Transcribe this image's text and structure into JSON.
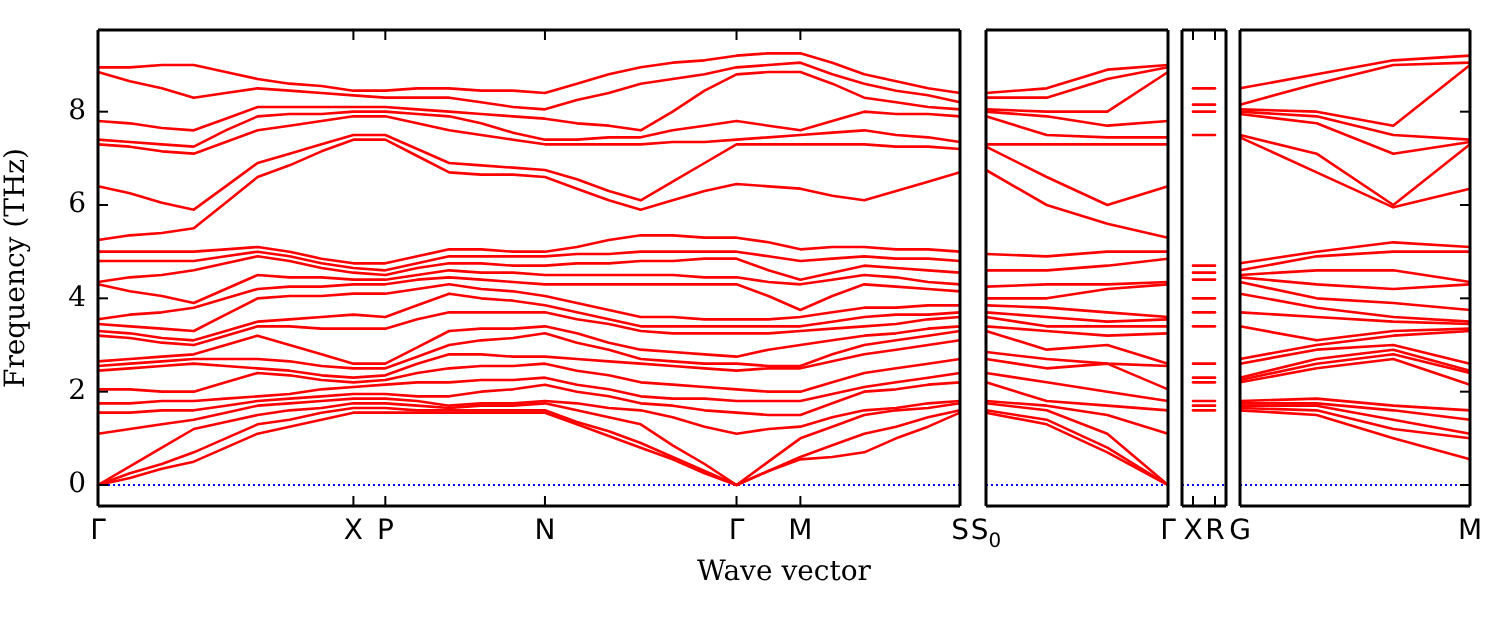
{
  "chart_data": [
    {
      "type": "line",
      "xlabel": "Wave vector",
      "ylabel": "Frequency (THz)",
      "ylim": [
        -0.45,
        9.75
      ],
      "yticks": [
        0,
        2,
        4,
        6,
        8
      ],
      "categories": [
        "Γ",
        null,
        null,
        null,
        null,
        null,
        null,
        null,
        "X",
        "P",
        null,
        null,
        null,
        null,
        "N",
        null,
        null,
        null,
        null,
        null,
        "Γ",
        null,
        "M",
        null,
        null,
        null,
        null,
        "S"
      ],
      "grid": false,
      "legend": false,
      "marker": "none",
      "line_style": "solid",
      "ref_lines": [
        {
          "axis": "y",
          "value": 0,
          "color": "#0000ff",
          "line_style": "dotted"
        }
      ],
      "series": [
        {
          "color": "#ff0000",
          "values": [
            0,
            0.15,
            0.35,
            0.5,
            0.8,
            1.1,
            1.25,
            1.4,
            1.55,
            1.55,
            1.55,
            1.55,
            1.55,
            1.55,
            1.55,
            1.3,
            1.05,
            0.8,
            0.55,
            0.25,
            0,
            0.3,
            0.55,
            0.6,
            0.7,
            1.0,
            1.25,
            1.55
          ]
        },
        {
          "color": "#ff0000",
          "values": [
            0,
            0.25,
            0.45,
            0.7,
            1.0,
            1.3,
            1.4,
            1.55,
            1.65,
            1.65,
            1.6,
            1.6,
            1.6,
            1.6,
            1.6,
            1.35,
            1.15,
            0.9,
            0.6,
            0.3,
            0,
            0.3,
            0.6,
            0.85,
            1.1,
            1.25,
            1.45,
            1.6
          ]
        },
        {
          "color": "#ff0000",
          "values": [
            0,
            0.4,
            0.8,
            1.2,
            1.35,
            1.5,
            1.6,
            1.65,
            1.75,
            1.75,
            1.7,
            1.65,
            1.7,
            1.7,
            1.75,
            1.6,
            1.45,
            1.3,
            0.85,
            0.45,
            0,
            0.5,
            1.0,
            1.25,
            1.5,
            1.6,
            1.65,
            1.75
          ]
        },
        {
          "color": "#ff0000",
          "values": [
            1.1,
            1.2,
            1.3,
            1.4,
            1.55,
            1.7,
            1.75,
            1.8,
            1.85,
            1.85,
            1.8,
            1.7,
            1.75,
            1.75,
            1.8,
            1.75,
            1.65,
            1.6,
            1.45,
            1.25,
            1.1,
            1.2,
            1.25,
            1.45,
            1.6,
            1.65,
            1.75,
            1.8
          ]
        },
        {
          "color": "#ff0000",
          "values": [
            1.55,
            1.55,
            1.6,
            1.6,
            1.7,
            1.8,
            1.85,
            1.9,
            1.95,
            1.95,
            1.9,
            1.9,
            2.0,
            2.05,
            2.15,
            2.0,
            1.9,
            1.75,
            1.7,
            1.6,
            1.55,
            1.5,
            1.5,
            1.75,
            2.0,
            2.05,
            2.15,
            2.2
          ]
        },
        {
          "color": "#ff0000",
          "values": [
            1.75,
            1.75,
            1.8,
            1.8,
            1.85,
            1.9,
            1.95,
            2.05,
            2.1,
            2.15,
            2.2,
            2.2,
            2.25,
            2.25,
            2.3,
            2.15,
            2.05,
            1.9,
            1.85,
            1.85,
            1.8,
            1.8,
            1.8,
            1.95,
            2.1,
            2.2,
            2.3,
            2.4
          ]
        },
        {
          "color": "#ff0000",
          "values": [
            2.05,
            2.05,
            2.0,
            2.0,
            2.2,
            2.4,
            2.35,
            2.25,
            2.2,
            2.25,
            2.4,
            2.5,
            2.55,
            2.55,
            2.6,
            2.45,
            2.35,
            2.2,
            2.15,
            2.1,
            2.05,
            2.0,
            2.0,
            2.2,
            2.4,
            2.5,
            2.6,
            2.7
          ]
        },
        {
          "color": "#ff0000",
          "values": [
            2.45,
            2.5,
            2.55,
            2.6,
            2.55,
            2.5,
            2.45,
            2.35,
            2.3,
            2.35,
            2.6,
            2.8,
            2.8,
            2.75,
            2.75,
            2.7,
            2.65,
            2.6,
            2.55,
            2.5,
            2.45,
            2.5,
            2.5,
            2.65,
            2.8,
            2.9,
            3.0,
            3.1
          ]
        },
        {
          "color": "#ff0000",
          "values": [
            2.55,
            2.6,
            2.65,
            2.7,
            2.7,
            2.7,
            2.65,
            2.55,
            2.5,
            2.5,
            2.75,
            3.0,
            3.1,
            3.15,
            3.25,
            3.05,
            2.9,
            2.7,
            2.65,
            2.6,
            2.6,
            2.55,
            2.55,
            2.8,
            3.0,
            3.1,
            3.2,
            3.3
          ]
        },
        {
          "color": "#ff0000",
          "values": [
            2.65,
            2.7,
            2.75,
            2.8,
            3.0,
            3.2,
            3.0,
            2.8,
            2.6,
            2.6,
            2.95,
            3.3,
            3.35,
            3.35,
            3.4,
            3.25,
            3.05,
            2.9,
            2.85,
            2.8,
            2.75,
            2.9,
            3.0,
            3.1,
            3.2,
            3.25,
            3.35,
            3.4
          ]
        },
        {
          "color": "#ff0000",
          "values": [
            3.2,
            3.15,
            3.05,
            3.0,
            3.2,
            3.4,
            3.4,
            3.35,
            3.35,
            3.35,
            3.55,
            3.7,
            3.7,
            3.7,
            3.7,
            3.55,
            3.45,
            3.3,
            3.25,
            3.25,
            3.25,
            3.25,
            3.3,
            3.35,
            3.4,
            3.45,
            3.55,
            3.6
          ]
        },
        {
          "color": "#ff0000",
          "values": [
            3.3,
            3.25,
            3.15,
            3.1,
            3.3,
            3.5,
            3.55,
            3.6,
            3.65,
            3.6,
            3.85,
            4.1,
            4.0,
            3.95,
            3.85,
            3.7,
            3.55,
            3.4,
            3.4,
            3.4,
            3.4,
            3.4,
            3.4,
            3.5,
            3.6,
            3.65,
            3.65,
            3.7
          ]
        },
        {
          "color": "#ff0000",
          "values": [
            3.45,
            3.4,
            3.35,
            3.3,
            3.65,
            4.0,
            4.05,
            4.05,
            4.1,
            4.1,
            4.2,
            4.3,
            4.2,
            4.15,
            4.05,
            3.9,
            3.75,
            3.6,
            3.6,
            3.55,
            3.55,
            3.55,
            3.6,
            3.7,
            3.8,
            3.8,
            3.85,
            3.85
          ]
        },
        {
          "color": "#ff0000",
          "values": [
            3.55,
            3.65,
            3.7,
            3.8,
            4.0,
            4.2,
            4.25,
            4.25,
            4.3,
            4.3,
            4.4,
            4.45,
            4.4,
            4.35,
            4.3,
            4.3,
            4.3,
            4.3,
            4.3,
            4.3,
            4.3,
            4.05,
            3.75,
            4.05,
            4.3,
            4.25,
            4.2,
            4.15
          ]
        },
        {
          "color": "#ff0000",
          "values": [
            4.3,
            4.15,
            4.05,
            3.9,
            4.2,
            4.5,
            4.45,
            4.45,
            4.4,
            4.4,
            4.5,
            4.6,
            4.55,
            4.55,
            4.5,
            4.5,
            4.5,
            4.5,
            4.5,
            4.45,
            4.45,
            4.35,
            4.3,
            4.4,
            4.5,
            4.45,
            4.35,
            4.3
          ]
        },
        {
          "color": "#ff0000",
          "values": [
            4.35,
            4.45,
            4.5,
            4.6,
            4.75,
            4.9,
            4.8,
            4.65,
            4.55,
            4.5,
            4.65,
            4.75,
            4.75,
            4.7,
            4.7,
            4.75,
            4.75,
            4.8,
            4.8,
            4.85,
            4.85,
            4.6,
            4.4,
            4.55,
            4.7,
            4.65,
            4.6,
            4.55
          ]
        },
        {
          "color": "#ff0000",
          "values": [
            4.8,
            4.8,
            4.8,
            4.8,
            4.9,
            5.0,
            4.9,
            4.75,
            4.65,
            4.6,
            4.75,
            4.9,
            4.9,
            4.9,
            4.9,
            4.95,
            4.95,
            5.0,
            5.0,
            5.0,
            5.0,
            4.9,
            4.8,
            4.85,
            4.9,
            4.85,
            4.85,
            4.8
          ]
        },
        {
          "color": "#ff0000",
          "values": [
            5.0,
            5.0,
            5.0,
            5.0,
            5.05,
            5.1,
            5.0,
            4.85,
            4.75,
            4.75,
            4.9,
            5.05,
            5.05,
            5.0,
            5.0,
            5.1,
            5.25,
            5.35,
            5.35,
            5.3,
            5.3,
            5.2,
            5.05,
            5.1,
            5.1,
            5.05,
            5.05,
            5.0
          ]
        },
        {
          "color": "#ff0000",
          "values": [
            5.25,
            5.35,
            5.4,
            5.5,
            6.05,
            6.6,
            6.85,
            7.15,
            7.4,
            7.4,
            7.05,
            6.7,
            6.65,
            6.65,
            6.6,
            6.35,
            6.1,
            5.9,
            6.1,
            6.3,
            6.45,
            6.4,
            6.35,
            6.2,
            6.1,
            6.3,
            6.5,
            6.7
          ]
        },
        {
          "color": "#ff0000",
          "values": [
            6.4,
            6.25,
            6.05,
            5.9,
            6.4,
            6.9,
            7.1,
            7.3,
            7.5,
            7.5,
            7.2,
            6.9,
            6.85,
            6.8,
            6.75,
            6.55,
            6.3,
            6.1,
            6.5,
            6.9,
            7.3,
            7.3,
            7.3,
            7.3,
            7.3,
            7.25,
            7.25,
            7.2
          ]
        },
        {
          "color": "#ff0000",
          "values": [
            7.3,
            7.25,
            7.15,
            7.1,
            7.35,
            7.6,
            7.7,
            7.8,
            7.9,
            7.9,
            7.75,
            7.6,
            7.5,
            7.4,
            7.3,
            7.3,
            7.3,
            7.3,
            7.35,
            7.35,
            7.4,
            7.45,
            7.5,
            7.55,
            7.6,
            7.5,
            7.45,
            7.35
          ]
        },
        {
          "color": "#ff0000",
          "values": [
            7.4,
            7.35,
            7.3,
            7.25,
            7.6,
            7.9,
            7.95,
            7.95,
            8.0,
            8.0,
            7.95,
            7.9,
            7.75,
            7.55,
            7.4,
            7.4,
            7.45,
            7.45,
            7.6,
            7.7,
            7.8,
            7.7,
            7.6,
            7.8,
            8.0,
            7.95,
            7.95,
            7.9
          ]
        },
        {
          "color": "#ff0000",
          "values": [
            7.8,
            7.75,
            7.65,
            7.6,
            7.85,
            8.1,
            8.1,
            8.1,
            8.1,
            8.1,
            8.05,
            8.0,
            7.95,
            7.9,
            7.85,
            7.75,
            7.7,
            7.6,
            8.0,
            8.45,
            8.8,
            8.85,
            8.85,
            8.6,
            8.3,
            8.2,
            8.1,
            8.05
          ]
        },
        {
          "color": "#ff0000",
          "values": [
            8.85,
            8.65,
            8.5,
            8.3,
            8.4,
            8.5,
            8.45,
            8.4,
            8.35,
            8.3,
            8.3,
            8.3,
            8.2,
            8.1,
            8.05,
            8.25,
            8.4,
            8.6,
            8.7,
            8.8,
            8.95,
            9.0,
            9.05,
            8.8,
            8.6,
            8.45,
            8.35,
            8.2
          ]
        },
        {
          "color": "#ff0000",
          "values": [
            8.95,
            8.95,
            9.0,
            9.0,
            8.85,
            8.7,
            8.6,
            8.55,
            8.45,
            8.45,
            8.5,
            8.5,
            8.45,
            8.45,
            8.4,
            8.6,
            8.8,
            8.95,
            9.05,
            9.1,
            9.2,
            9.25,
            9.25,
            9.05,
            8.8,
            8.65,
            8.5,
            8.4
          ]
        }
      ]
    },
    {
      "type": "line",
      "tick_labels": "x",
      "ylim": [
        -0.45,
        9.75
      ],
      "categories": [
        "S$_{0}$",
        null,
        null,
        "Γ"
      ],
      "grid": false,
      "legend": false,
      "marker": "none",
      "line_style": "solid",
      "ref_lines": [
        {
          "axis": "y",
          "value": 0,
          "color": "#0000ff",
          "line_style": "dotted"
        }
      ],
      "series": [
        {
          "color": "#ff0000",
          "values": [
            1.55,
            1.3,
            0.7,
            0
          ]
        },
        {
          "color": "#ff0000",
          "values": [
            1.6,
            1.4,
            0.8,
            0
          ]
        },
        {
          "color": "#ff0000",
          "values": [
            1.75,
            1.6,
            1.1,
            0
          ]
        },
        {
          "color": "#ff0000",
          "values": [
            1.8,
            1.7,
            1.5,
            1.1
          ]
        },
        {
          "color": "#ff0000",
          "values": [
            2.2,
            1.8,
            1.7,
            1.6
          ]
        },
        {
          "color": "#ff0000",
          "values": [
            2.4,
            2.2,
            2.0,
            1.8
          ]
        },
        {
          "color": "#ff0000",
          "values": [
            2.7,
            2.5,
            2.6,
            2.05
          ]
        },
        {
          "color": "#ff0000",
          "values": [
            2.85,
            2.7,
            2.6,
            2.55
          ]
        },
        {
          "color": "#ff0000",
          "values": [
            3.3,
            2.9,
            3.0,
            2.6
          ]
        },
        {
          "color": "#ff0000",
          "values": [
            3.4,
            3.3,
            3.2,
            3.25
          ]
        },
        {
          "color": "#ff0000",
          "values": [
            3.6,
            3.4,
            3.4,
            3.4
          ]
        },
        {
          "color": "#ff0000",
          "values": [
            3.7,
            3.6,
            3.5,
            3.55
          ]
        },
        {
          "color": "#ff0000",
          "values": [
            3.85,
            3.8,
            3.7,
            3.6
          ]
        },
        {
          "color": "#ff0000",
          "values": [
            4.0,
            4.0,
            4.2,
            4.3
          ]
        },
        {
          "color": "#ff0000",
          "values": [
            4.25,
            4.3,
            4.3,
            4.35
          ]
        },
        {
          "color": "#ff0000",
          "values": [
            4.6,
            4.6,
            4.7,
            4.85
          ]
        },
        {
          "color": "#ff0000",
          "values": [
            4.95,
            4.9,
            5.0,
            5.0
          ]
        },
        {
          "color": "#ff0000",
          "values": [
            6.75,
            6.0,
            5.6,
            5.3
          ]
        },
        {
          "color": "#ff0000",
          "values": [
            7.25,
            6.6,
            6.0,
            6.4
          ]
        },
        {
          "color": "#ff0000",
          "values": [
            7.3,
            7.3,
            7.3,
            7.3
          ]
        },
        {
          "color": "#ff0000",
          "values": [
            7.9,
            7.5,
            7.45,
            7.45
          ]
        },
        {
          "color": "#ff0000",
          "values": [
            8.0,
            7.9,
            7.7,
            7.8
          ]
        },
        {
          "color": "#ff0000",
          "values": [
            8.05,
            8.0,
            8.0,
            8.85
          ]
        },
        {
          "color": "#ff0000",
          "values": [
            8.3,
            8.3,
            8.7,
            8.95
          ]
        },
        {
          "color": "#ff0000",
          "values": [
            8.4,
            8.5,
            8.9,
            9.0
          ]
        }
      ]
    },
    {
      "type": "line",
      "tick_labels": "x",
      "ylim": [
        -0.45,
        9.75
      ],
      "categories": [
        "X",
        "R"
      ],
      "grid": false,
      "legend": false,
      "marker": "none",
      "line_style": "solid",
      "ref_lines": [
        {
          "axis": "y",
          "value": 0,
          "color": "#0000ff",
          "line_style": "dotted"
        }
      ],
      "series": [
        {
          "color": "#ff0000",
          "values": [
            1.6,
            1.6
          ]
        },
        {
          "color": "#ff0000",
          "values": [
            1.7,
            1.7
          ]
        },
        {
          "color": "#ff0000",
          "values": [
            1.8,
            1.8
          ]
        },
        {
          "color": "#ff0000",
          "values": [
            2.2,
            2.2
          ]
        },
        {
          "color": "#ff0000",
          "values": [
            2.3,
            2.3
          ]
        },
        {
          "color": "#ff0000",
          "values": [
            2.6,
            2.6
          ]
        },
        {
          "color": "#ff0000",
          "values": [
            3.4,
            3.4
          ]
        },
        {
          "color": "#ff0000",
          "values": [
            3.7,
            3.7
          ]
        },
        {
          "color": "#ff0000",
          "values": [
            4.0,
            4.0
          ]
        },
        {
          "color": "#ff0000",
          "values": [
            4.4,
            4.4
          ]
        },
        {
          "color": "#ff0000",
          "values": [
            4.55,
            4.55
          ]
        },
        {
          "color": "#ff0000",
          "values": [
            4.7,
            4.7
          ]
        },
        {
          "color": "#ff0000",
          "values": [
            7.5,
            7.5
          ]
        },
        {
          "color": "#ff0000",
          "values": [
            8.0,
            8.0
          ]
        },
        {
          "color": "#ff0000",
          "values": [
            8.15,
            8.15
          ]
        },
        {
          "color": "#ff0000",
          "values": [
            8.5,
            8.5
          ]
        }
      ]
    },
    {
      "type": "line",
      "tick_labels": "x",
      "ylim": [
        -0.45,
        9.75
      ],
      "yticks": [
        {
          "value": 0,
          "label": null
        },
        {
          "value": 2,
          "label": null
        },
        {
          "value": 4,
          "label": null
        },
        {
          "value": 6,
          "label": null
        },
        {
          "value": 8,
          "label": null
        }
      ],
      "categories": [
        "G",
        null,
        null,
        "M"
      ],
      "grid": false,
      "legend": false,
      "marker": "none",
      "line_style": "solid",
      "ref_lines": [
        {
          "axis": "y",
          "value": 0,
          "color": "#0000ff",
          "line_style": "dotted"
        }
      ],
      "series": [
        {
          "color": "#ff0000",
          "values": [
            1.6,
            1.5,
            1.0,
            0.55
          ]
        },
        {
          "color": "#ff0000",
          "values": [
            1.65,
            1.6,
            1.2,
            1.0
          ]
        },
        {
          "color": "#ff0000",
          "values": [
            1.7,
            1.7,
            1.4,
            1.1
          ]
        },
        {
          "color": "#ff0000",
          "values": [
            1.75,
            1.75,
            1.6,
            1.4
          ]
        },
        {
          "color": "#ff0000",
          "values": [
            1.8,
            1.85,
            1.7,
            1.6
          ]
        },
        {
          "color": "#ff0000",
          "values": [
            2.2,
            2.5,
            2.7,
            2.15
          ]
        },
        {
          "color": "#ff0000",
          "values": [
            2.25,
            2.6,
            2.8,
            2.4
          ]
        },
        {
          "color": "#ff0000",
          "values": [
            2.3,
            2.7,
            2.9,
            2.45
          ]
        },
        {
          "color": "#ff0000",
          "values": [
            2.6,
            2.9,
            3.0,
            2.6
          ]
        },
        {
          "color": "#ff0000",
          "values": [
            2.7,
            3.0,
            3.2,
            3.3
          ]
        },
        {
          "color": "#ff0000",
          "values": [
            3.4,
            3.1,
            3.3,
            3.35
          ]
        },
        {
          "color": "#ff0000",
          "values": [
            3.7,
            3.6,
            3.5,
            3.45
          ]
        },
        {
          "color": "#ff0000",
          "values": [
            4.1,
            3.8,
            3.6,
            3.5
          ]
        },
        {
          "color": "#ff0000",
          "values": [
            4.35,
            4.0,
            3.9,
            3.75
          ]
        },
        {
          "color": "#ff0000",
          "values": [
            4.45,
            4.3,
            4.2,
            4.3
          ]
        },
        {
          "color": "#ff0000",
          "values": [
            4.5,
            4.6,
            4.6,
            4.35
          ]
        },
        {
          "color": "#ff0000",
          "values": [
            4.6,
            4.9,
            5.0,
            5.0
          ]
        },
        {
          "color": "#ff0000",
          "values": [
            4.75,
            5.0,
            5.2,
            5.1
          ]
        },
        {
          "color": "#ff0000",
          "values": [
            7.45,
            6.7,
            5.95,
            6.35
          ]
        },
        {
          "color": "#ff0000",
          "values": [
            7.5,
            7.1,
            6.0,
            7.3
          ]
        },
        {
          "color": "#ff0000",
          "values": [
            7.95,
            7.75,
            7.1,
            7.35
          ]
        },
        {
          "color": "#ff0000",
          "values": [
            8.0,
            7.9,
            7.5,
            7.4
          ]
        },
        {
          "color": "#ff0000",
          "values": [
            8.05,
            8.0,
            7.7,
            9.0
          ]
        },
        {
          "color": "#ff0000",
          "values": [
            8.15,
            8.6,
            9.0,
            9.05
          ]
        },
        {
          "color": "#ff0000",
          "values": [
            8.5,
            8.8,
            9.1,
            9.2
          ]
        }
      ]
    }
  ]
}
